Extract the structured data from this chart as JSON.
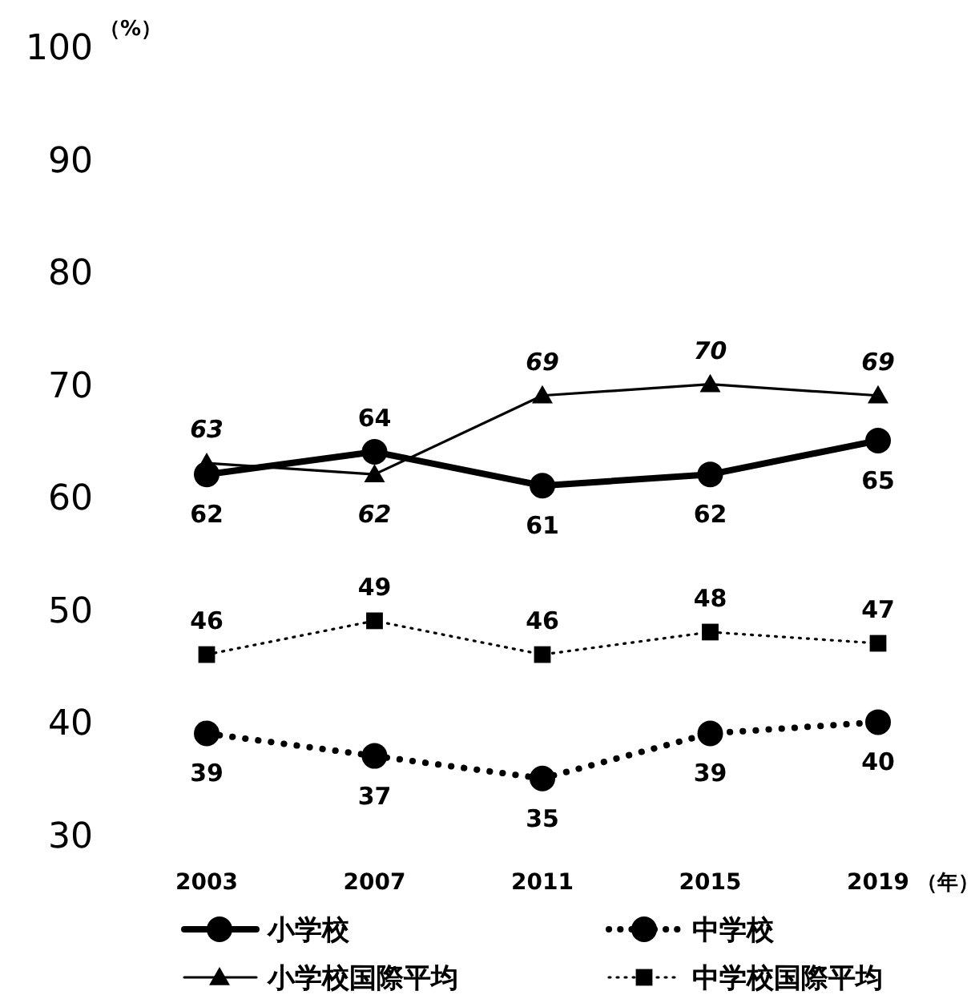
{
  "chart_data": {
    "type": "line",
    "categories": [
      "2003",
      "2007",
      "2011",
      "2015",
      "2019"
    ],
    "xlabel": "（年）",
    "ylabel": "（%）",
    "ylim": [
      30,
      100
    ],
    "yticks": [
      30,
      40,
      50,
      60,
      70,
      80,
      90,
      100
    ],
    "grid": false,
    "legend": "bottom",
    "data_labels": true,
    "series": [
      {
        "name": "小学校",
        "color": "#000000",
        "marker": "circle",
        "line_style": "solid",
        "values": [
          62,
          64,
          61,
          62,
          65
        ]
      },
      {
        "name": "中学校",
        "color": "#000000",
        "marker": "circle",
        "line_style": "dotted",
        "values": [
          39,
          37,
          35,
          39,
          40
        ]
      },
      {
        "name": "小学校国際平均",
        "color": "#000000",
        "marker": "triangle",
        "line_style": "solid",
        "values": [
          63,
          62,
          69,
          70,
          69
        ]
      },
      {
        "name": "中学校国際平均",
        "color": "#000000",
        "marker": "square",
        "line_style": "dotted",
        "values": [
          46,
          49,
          46,
          48,
          47
        ]
      }
    ]
  }
}
